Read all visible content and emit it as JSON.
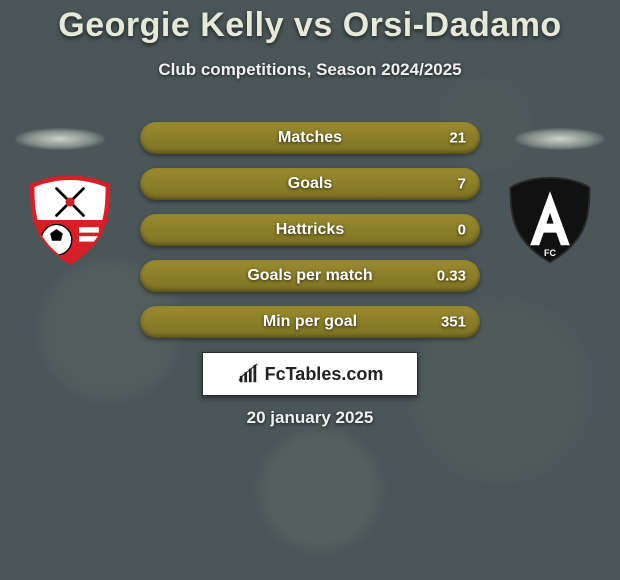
{
  "title": "Georgie Kelly vs Orsi-Dadamo",
  "subtitle": "Club competitions, Season 2024/2025",
  "date": "20 january 2025",
  "brand": "FcTables.com",
  "background_color": "#4a5658",
  "title_color": "#e6e9d7",
  "text_color": "#ffffff",
  "bars": {
    "fill_color": "#8d7f28",
    "half_opacity": 0.0,
    "label_fontsize": 16,
    "value_fontsize": 15,
    "rows": [
      {
        "label": "Matches",
        "left": "",
        "right": "21"
      },
      {
        "label": "Goals",
        "left": "",
        "right": "7"
      },
      {
        "label": "Hattricks",
        "left": "",
        "right": "0"
      },
      {
        "label": "Goals per match",
        "left": "",
        "right": "0.33"
      },
      {
        "label": "Min per goal",
        "left": "",
        "right": "351"
      }
    ]
  },
  "crest_left": {
    "name": "rotherham-united",
    "primary": "#d61f26",
    "secondary": "#ffffff",
    "accent": "#000000"
  },
  "crest_right": {
    "name": "academico-viseu",
    "primary": "#111111",
    "secondary": "#ffffff"
  }
}
